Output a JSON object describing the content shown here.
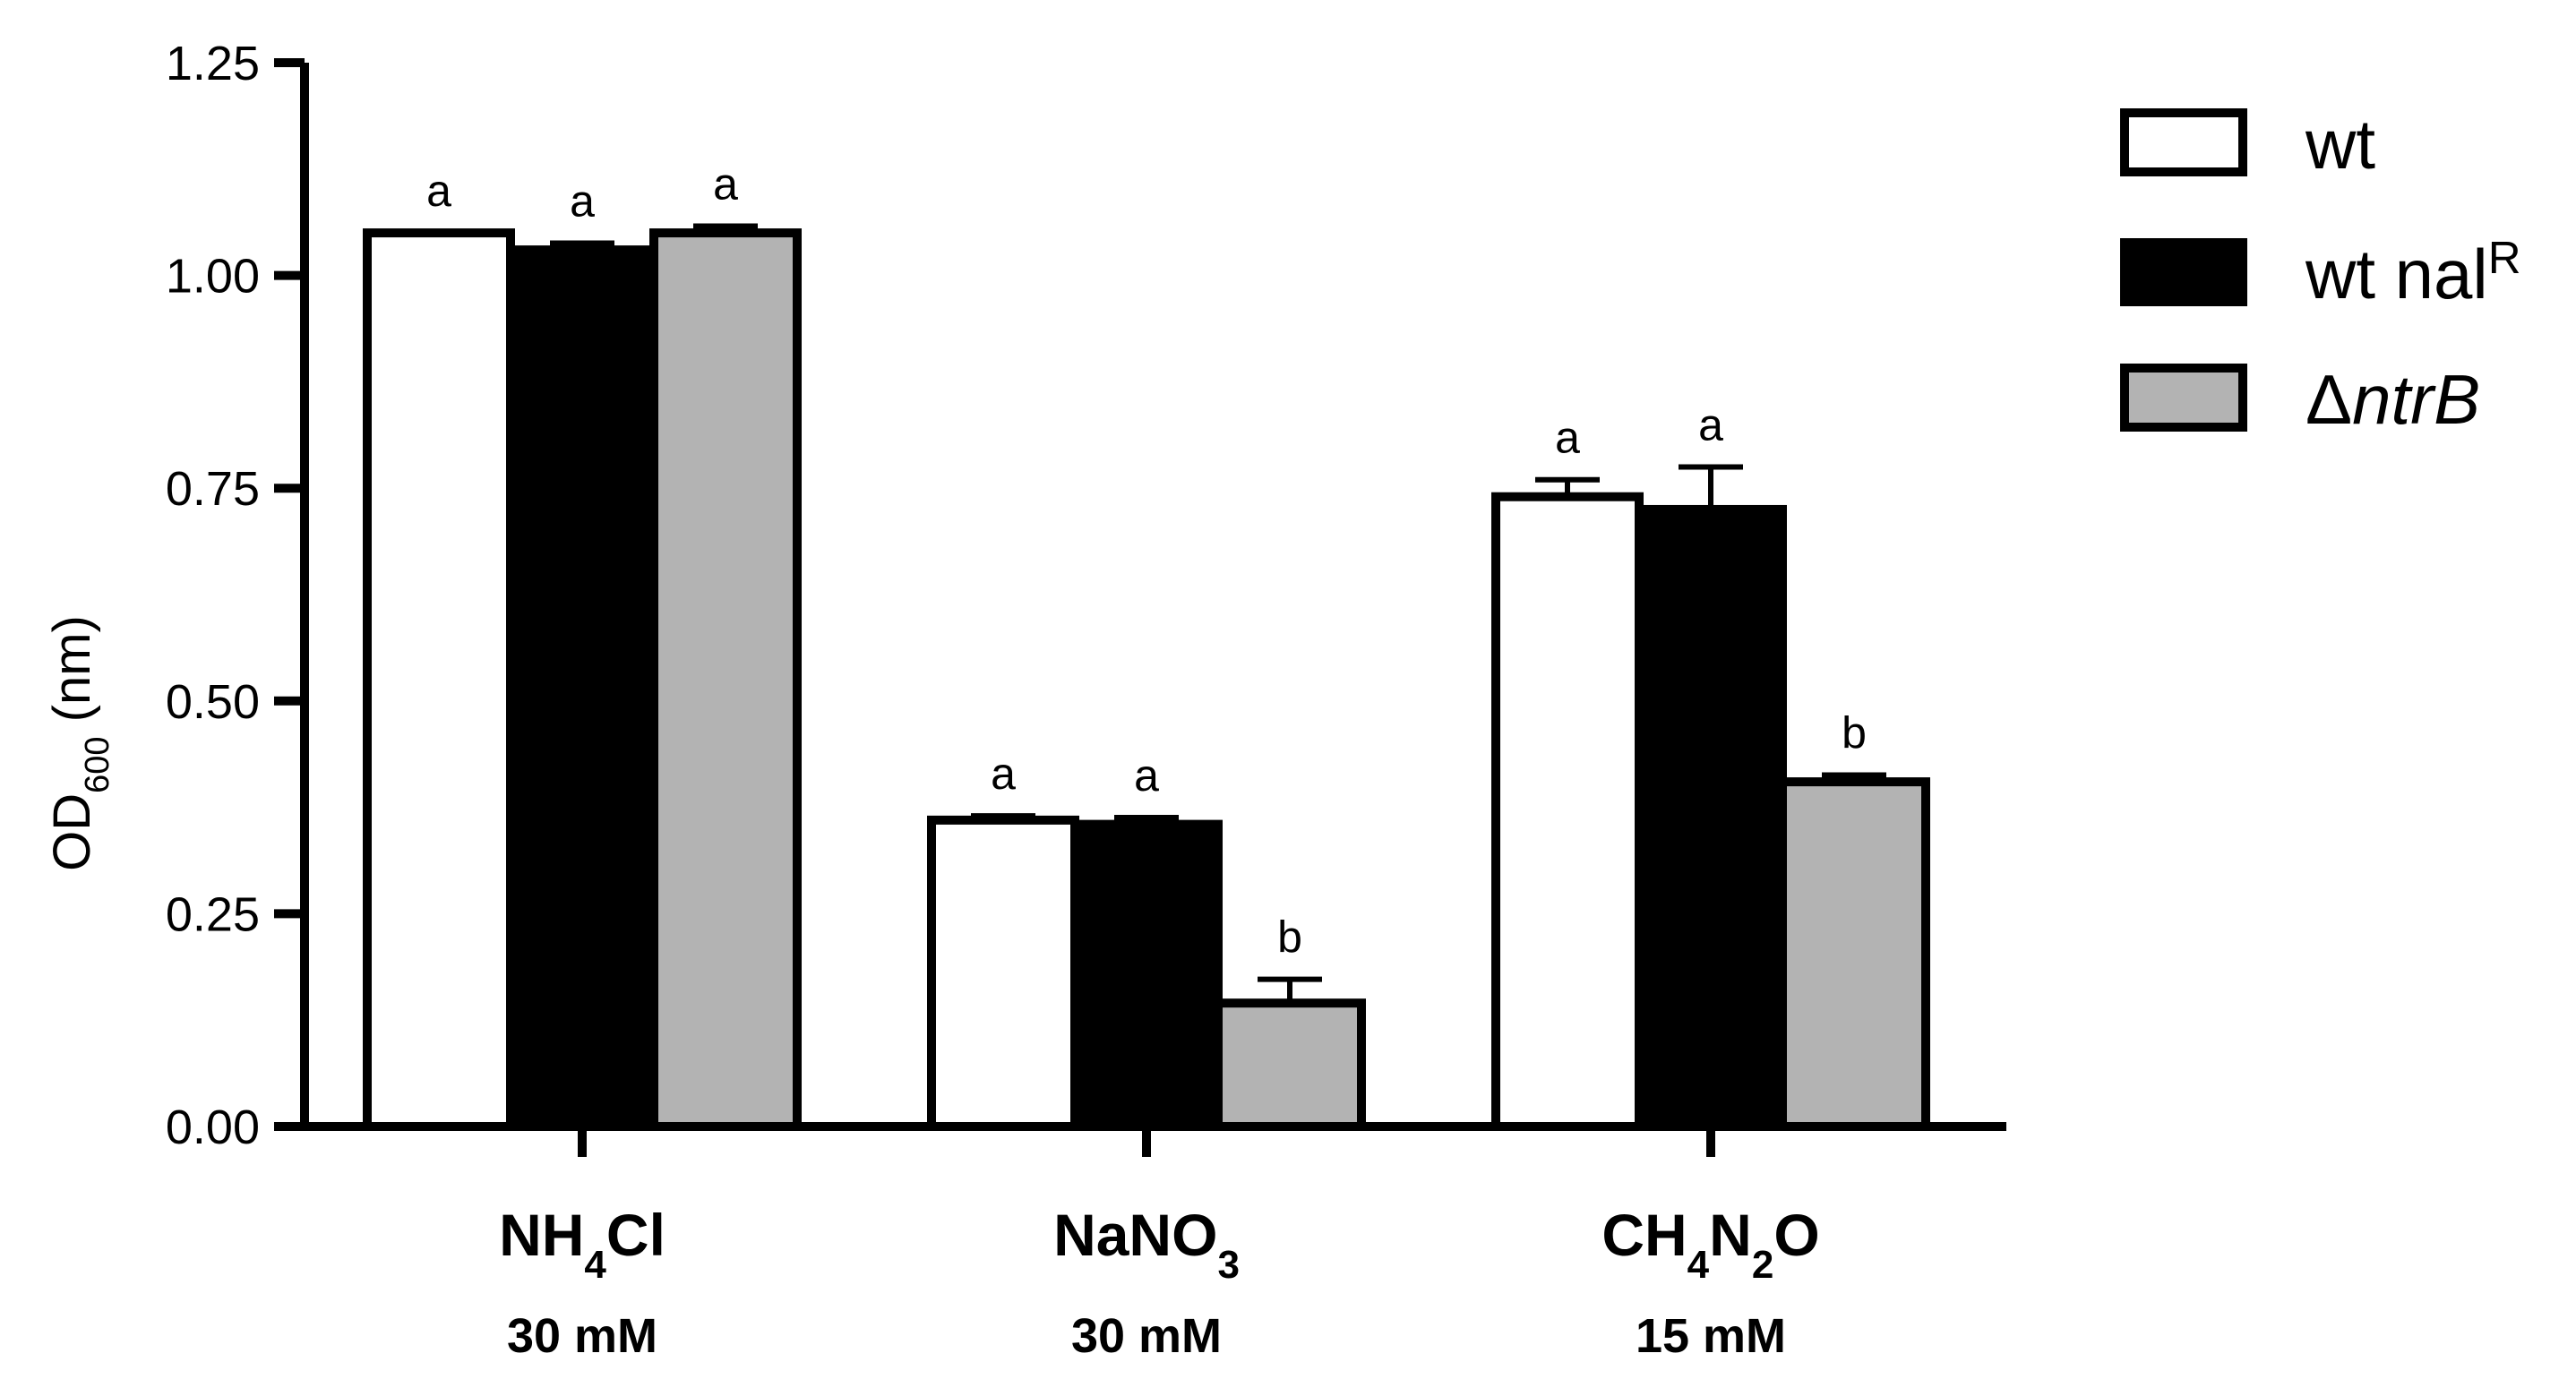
{
  "chart_data": {
    "type": "bar",
    "ylabel": {
      "main": "OD",
      "sub": "600",
      "unit": "(nm)"
    },
    "ylim": [
      0,
      1.25
    ],
    "yticks": [
      "0.00",
      "0.25",
      "0.50",
      "0.75",
      "1.00",
      "1.25"
    ],
    "ytick_values": [
      0,
      0.25,
      0.5,
      0.75,
      1.0,
      1.25
    ],
    "grid": false,
    "legend_position": "top-right",
    "categories": [
      {
        "parts": [
          {
            "t": "NH"
          },
          {
            "t": "4",
            "sub": true
          },
          {
            "t": "Cl"
          }
        ],
        "concentration": "30 mM"
      },
      {
        "parts": [
          {
            "t": "NaNO"
          },
          {
            "t": "3",
            "sub": true
          }
        ],
        "concentration": "30 mM"
      },
      {
        "parts": [
          {
            "t": "CH"
          },
          {
            "t": "4",
            "sub": true
          },
          {
            "t": "N"
          },
          {
            "t": "2",
            "sub": true
          },
          {
            "t": "O"
          }
        ],
        "concentration": "15 mM"
      }
    ],
    "series": [
      {
        "name": "wt",
        "legend_parts": [
          {
            "t": "wt"
          }
        ],
        "color": "#ffffff",
        "values": [
          1.05,
          0.36,
          0.74
        ],
        "errors": [
          0.0,
          0.005,
          0.02
        ],
        "labels": [
          "a",
          "a",
          "a"
        ]
      },
      {
        "name": "wt nalR",
        "legend_parts": [
          {
            "t": "wt nal"
          },
          {
            "t": "R",
            "sup": true
          }
        ],
        "color": "#000000",
        "values": [
          1.03,
          0.355,
          0.725
        ],
        "errors": [
          0.008,
          0.008,
          0.05
        ],
        "labels": [
          "a",
          "a",
          "a"
        ]
      },
      {
        "name": "ΔntrB",
        "legend_parts": [
          {
            "t": "Δ"
          },
          {
            "t": "ntrB",
            "italic": true
          }
        ],
        "color": "#b3b3b3",
        "values": [
          1.05,
          0.145,
          0.405
        ],
        "errors": [
          0.008,
          0.028,
          0.008
        ],
        "labels": [
          "a",
          "b",
          "b"
        ]
      }
    ]
  }
}
